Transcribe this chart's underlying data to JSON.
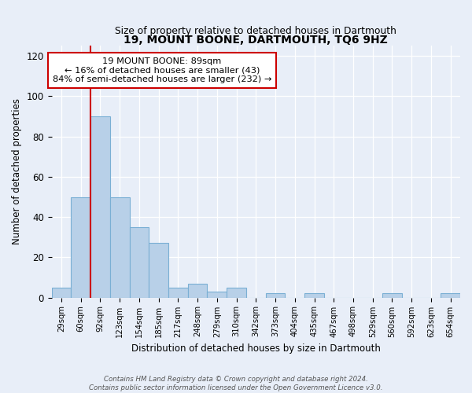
{
  "title": "19, MOUNT BOONE, DARTMOUTH, TQ6 9HZ",
  "subtitle": "Size of property relative to detached houses in Dartmouth",
  "xlabel": "Distribution of detached houses by size in Dartmouth",
  "ylabel": "Number of detached properties",
  "bar_labels": [
    "29sqm",
    "60sqm",
    "92sqm",
    "123sqm",
    "154sqm",
    "185sqm",
    "217sqm",
    "248sqm",
    "279sqm",
    "310sqm",
    "342sqm",
    "373sqm",
    "404sqm",
    "435sqm",
    "467sqm",
    "498sqm",
    "529sqm",
    "560sqm",
    "592sqm",
    "623sqm",
    "654sqm"
  ],
  "bar_values": [
    5,
    50,
    90,
    50,
    35,
    27,
    5,
    7,
    3,
    5,
    0,
    2,
    0,
    2,
    0,
    0,
    0,
    2,
    0,
    0,
    2
  ],
  "bar_color": "#b8d0e8",
  "bar_edge_color": "#7aafd4",
  "ylim": [
    0,
    125
  ],
  "yticks": [
    0,
    20,
    40,
    60,
    80,
    100,
    120
  ],
  "property_line_color": "#cc0000",
  "annotation_title": "19 MOUNT BOONE: 89sqm",
  "annotation_line1": "← 16% of detached houses are smaller (43)",
  "annotation_line2": "84% of semi-detached houses are larger (232) →",
  "annotation_box_edgecolor": "#cc0000",
  "footer_line1": "Contains HM Land Registry data © Crown copyright and database right 2024.",
  "footer_line2": "Contains public sector information licensed under the Open Government Licence v3.0.",
  "background_color": "#e8eef8",
  "plot_bg_color": "#e8eef8"
}
